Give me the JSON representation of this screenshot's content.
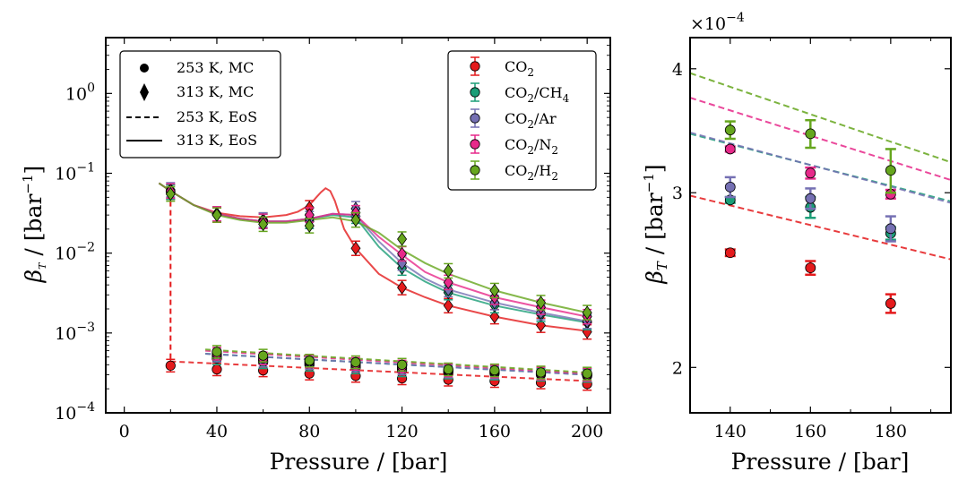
{
  "chart_data": [
    {
      "type": "line",
      "panel": "main",
      "xlabel": "Pressure / [bar]",
      "ylabel": "β_T / [bar^-1]",
      "ylabel_main": "β",
      "ylabel_sub": "T",
      "ylabel_rest": " / [bar",
      "ylabel_sup": "−1",
      "ylabel_close": "]",
      "xlim": [
        -8,
        210
      ],
      "ylim": [
        0.0001,
        5
      ],
      "yscale": "log",
      "xticks": [
        0,
        40,
        80,
        120,
        160,
        200
      ],
      "xtick_labels": [
        "0",
        "40",
        "80",
        "120",
        "160",
        "200"
      ],
      "yticks": [
        0.0001,
        0.001,
        0.01,
        0.1,
        1
      ],
      "ytick_base": [
        "10",
        "10",
        "10",
        "10",
        "10"
      ],
      "ytick_exp": [
        "−4",
        "−3",
        "−2",
        "−1",
        "0"
      ],
      "legend_markers": {
        "position": "upper-left",
        "entries": [
          {
            "label": "253 K, MC",
            "style": "circle"
          },
          {
            "label": "313 K, MC",
            "style": "diamond"
          },
          {
            "label": "253 K, EoS",
            "style": "dashed"
          },
          {
            "label": "313 K, EoS",
            "style": "solid"
          }
        ]
      },
      "legend_series": {
        "position": "upper-right",
        "entries": [
          {
            "base": "CO",
            "sub": "2",
            "rest": "",
            "sub2": ""
          },
          {
            "base": "CO",
            "sub": "2",
            "rest": "/CH",
            "sub2": "4"
          },
          {
            "base": "CO",
            "sub": "2",
            "rest": "/Ar",
            "sub2": ""
          },
          {
            "base": "CO",
            "sub": "2",
            "rest": "/N",
            "sub2": "2"
          },
          {
            "base": "CO",
            "sub": "2",
            "rest": "/H",
            "sub2": "2"
          }
        ]
      },
      "series": [
        {
          "name": "CO2",
          "color": "#e41a1c",
          "mc_253": {
            "x": [
              20,
              40,
              60,
              80,
              100,
              120,
              140,
              160,
              180,
              200
            ],
            "y": [
              0.00039,
              0.00035,
              0.00034,
              0.00031,
              0.00029,
              0.00027,
              0.00026,
              0.00025,
              0.00024,
              0.00023
            ]
          },
          "mc_313": {
            "x": [
              20,
              40,
              60,
              80,
              100,
              120,
              140,
              160,
              180,
              200
            ],
            "y": [
              0.058,
              0.03,
              0.026,
              0.037,
              0.0115,
              0.0037,
              0.0022,
              0.0016,
              0.00125,
              0.00103
            ]
          },
          "eos_253": {
            "x": [
              20,
              200
            ],
            "y": [
              0.00044,
              0.00025
            ]
          },
          "eos_313": {
            "x": [
              15,
              20,
              30,
              40,
              50,
              60,
              70,
              75,
              80,
              83,
              85,
              87,
              89,
              91,
              93,
              95,
              100,
              110,
              120,
              130,
              140,
              160,
              180,
              200
            ],
            "y": [
              0.075,
              0.06,
              0.04,
              0.032,
              0.029,
              0.028,
              0.03,
              0.033,
              0.04,
              0.05,
              0.058,
              0.065,
              0.06,
              0.045,
              0.03,
              0.02,
              0.0115,
              0.0055,
              0.0037,
              0.0028,
              0.0022,
              0.0016,
              0.00125,
              0.00106
            ]
          },
          "drop_x": 20,
          "drop_y": [
            0.058,
            0.00039
          ]
        },
        {
          "name": "CO2/CH4",
          "color": "#1b9e77",
          "mc_253": {
            "x": [
              40,
              60,
              80,
              100,
              120,
              140,
              160,
              180,
              200
            ],
            "y": [
              0.00048,
              0.00043,
              0.0004,
              0.00037,
              0.00034,
              0.00032,
              0.00031,
              0.0003,
              0.00029
            ]
          },
          "mc_313": {
            "x": [
              20,
              40,
              60,
              80,
              100,
              120,
              140,
              160,
              180,
              200
            ],
            "y": [
              0.058,
              0.031,
              0.025,
              0.025,
              0.029,
              0.0065,
              0.0032,
              0.0022,
              0.0017,
              0.00135
            ]
          },
          "eos_253": {
            "x": [
              35,
              200
            ],
            "y": [
              0.00055,
              0.0003
            ]
          },
          "eos_313": {
            "x": [
              15,
              20,
              30,
              40,
              50,
              60,
              70,
              80,
              90,
              100,
              110,
              120,
              130,
              140,
              160,
              180,
              200
            ],
            "y": [
              0.075,
              0.06,
              0.04,
              0.031,
              0.027,
              0.025,
              0.025,
              0.027,
              0.03,
              0.028,
              0.012,
              0.0065,
              0.0044,
              0.0032,
              0.0022,
              0.0017,
              0.00135
            ]
          }
        },
        {
          "name": "CO2/Ar",
          "color": "#7570b3",
          "mc_253": {
            "x": [
              40,
              60,
              80,
              100,
              120,
              140,
              160,
              180,
              200
            ],
            "y": [
              0.00052,
              0.00045,
              0.00042,
              0.00039,
              0.00036,
              0.00033,
              0.00032,
              0.00031,
              0.0003
            ]
          },
          "mc_313": {
            "x": [
              20,
              40,
              60,
              80,
              100,
              120,
              140,
              160,
              180,
              200
            ],
            "y": [
              0.062,
              0.031,
              0.026,
              0.027,
              0.036,
              0.0075,
              0.0035,
              0.0024,
              0.0018,
              0.0014
            ]
          },
          "eos_253": {
            "x": [
              35,
              200
            ],
            "y": [
              0.00055,
              0.0003
            ]
          },
          "eos_313": {
            "x": [
              15,
              20,
              30,
              40,
              50,
              60,
              70,
              80,
              90,
              100,
              110,
              120,
              130,
              140,
              160,
              180,
              200
            ],
            "y": [
              0.075,
              0.06,
              0.04,
              0.031,
              0.027,
              0.025,
              0.025,
              0.027,
              0.031,
              0.03,
              0.014,
              0.0075,
              0.0048,
              0.0035,
              0.0024,
              0.0018,
              0.0014
            ]
          }
        },
        {
          "name": "CO2/N2",
          "color": "#e7298a",
          "mc_253": {
            "x": [
              40,
              60,
              80,
              100,
              120,
              140,
              160,
              180,
              200
            ],
            "y": [
              0.00055,
              0.00048,
              0.00044,
              0.00041,
              0.00038,
              0.00034,
              0.00033,
              0.00031,
              0.0003
            ]
          },
          "mc_313": {
            "x": [
              20,
              40,
              60,
              80,
              100,
              120,
              140,
              160,
              180,
              200
            ],
            "y": [
              0.06,
              0.031,
              0.025,
              0.03,
              0.032,
              0.0098,
              0.0043,
              0.0028,
              0.0021,
              0.0016
            ]
          },
          "eos_253": {
            "x": [
              35,
              200
            ],
            "y": [
              0.0006,
              0.00031
            ]
          },
          "eos_313": {
            "x": [
              15,
              20,
              30,
              40,
              50,
              60,
              70,
              80,
              90,
              100,
              110,
              120,
              130,
              140,
              160,
              180,
              200
            ],
            "y": [
              0.075,
              0.06,
              0.04,
              0.031,
              0.027,
              0.025,
              0.025,
              0.027,
              0.031,
              0.03,
              0.016,
              0.0095,
              0.0058,
              0.0043,
              0.0028,
              0.0021,
              0.0016
            ]
          }
        },
        {
          "name": "CO2/H2",
          "color": "#66a61e",
          "mc_253": {
            "x": [
              40,
              60,
              80,
              100,
              120,
              140,
              160,
              180,
              200
            ],
            "y": [
              0.00058,
              0.00052,
              0.00045,
              0.00043,
              0.0004,
              0.00035,
              0.00034,
              0.00032,
              0.00031
            ]
          },
          "mc_313": {
            "x": [
              20,
              40,
              60,
              80,
              100,
              120,
              140,
              160,
              180,
              200
            ],
            "y": [
              0.055,
              0.03,
              0.023,
              0.022,
              0.026,
              0.015,
              0.006,
              0.0034,
              0.0024,
              0.0018
            ]
          },
          "eos_253": {
            "x": [
              35,
              200
            ],
            "y": [
              0.00062,
              0.00032
            ]
          },
          "eos_313": {
            "x": [
              15,
              20,
              30,
              40,
              50,
              60,
              70,
              80,
              90,
              100,
              110,
              120,
              130,
              140,
              160,
              180,
              200
            ],
            "y": [
              0.075,
              0.06,
              0.04,
              0.03,
              0.026,
              0.024,
              0.024,
              0.026,
              0.028,
              0.025,
              0.018,
              0.011,
              0.0075,
              0.0055,
              0.0034,
              0.0024,
              0.0018
            ]
          }
        }
      ]
    },
    {
      "type": "scatter",
      "panel": "inset",
      "xlabel": "Pressure / [bar]",
      "ylabel": "β_T / [bar^-1]",
      "ylabel_main": "β",
      "ylabel_sub": "T",
      "ylabel_rest": " / [bar",
      "ylabel_sup": "−1",
      "ylabel_close": "]",
      "xlim": [
        130,
        195
      ],
      "ylim": [
        0.00018,
        0.00043
      ],
      "yscale": "log",
      "scale_base": "×10",
      "scale_exp": "−4",
      "xticks": [
        140,
        160,
        180
      ],
      "xtick_labels": [
        "140",
        "160",
        "180"
      ],
      "yticks": [
        0.0002,
        0.0003,
        0.0004
      ],
      "ytick_labels": [
        "2",
        "3",
        "4"
      ],
      "series": [
        {
          "name": "CO2",
          "color": "#e41a1c",
          "x": [
            140,
            160,
            180
          ],
          "y": [
            0.000261,
            0.000252,
            0.000232
          ],
          "err": [
            2e-06,
            4e-06,
            5e-06
          ],
          "eos": [
            0.000298,
            0.000257
          ]
        },
        {
          "name": "CO2/CH4",
          "color": "#1b9e77",
          "x": [
            140,
            160,
            180
          ],
          "y": [
            0.000295,
            0.00029,
            0.000273
          ],
          "err": [
            2e-06,
            7e-06,
            4e-06
          ],
          "eos": [
            0.000344,
            0.000294
          ]
        },
        {
          "name": "CO2/Ar",
          "color": "#7570b3",
          "x": [
            140,
            160,
            180
          ],
          "y": [
            0.000304,
            0.000296,
            0.000276
          ],
          "err": [
            7e-06,
            7e-06,
            8e-06
          ],
          "eos": [
            0.000345,
            0.000293
          ]
        },
        {
          "name": "CO2/N2",
          "color": "#e7298a",
          "x": [
            140,
            160,
            180
          ],
          "y": [
            0.000332,
            0.000314,
            0.000299
          ],
          "err": [
            2e-06,
            4e-06,
            3e-06
          ],
          "eos": [
            0.000374,
            0.000309
          ]
        },
        {
          "name": "CO2/H2",
          "color": "#66a61e",
          "x": [
            140,
            160,
            180
          ],
          "y": [
            0.000347,
            0.000344,
            0.000316
          ],
          "err": [
            7e-06,
            1.1e-05,
            1.6e-05
          ],
          "eos": [
            0.000396,
            0.000322
          ]
        }
      ]
    }
  ]
}
